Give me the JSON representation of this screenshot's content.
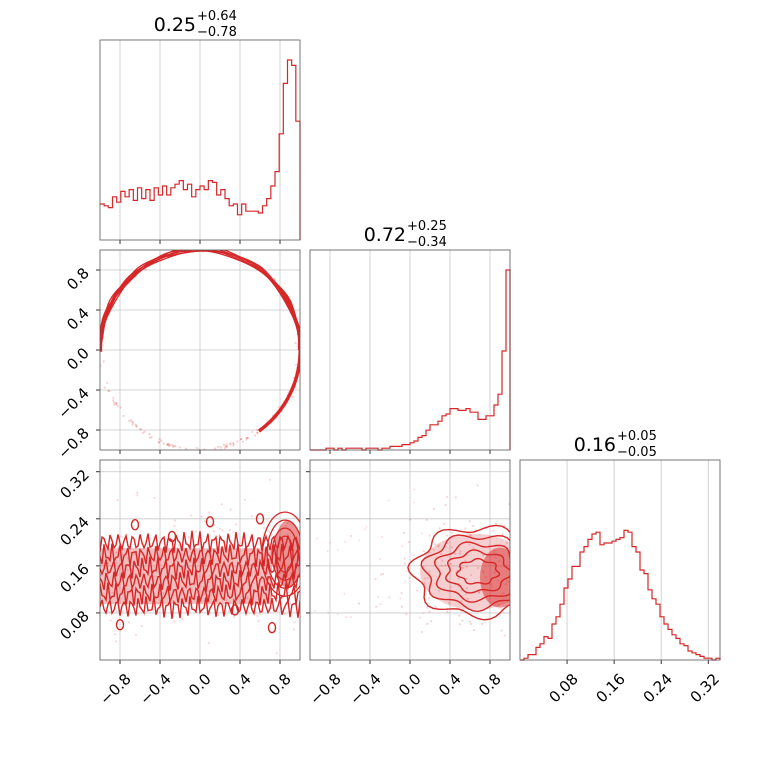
{
  "colors": {
    "accent": "#d62728",
    "grid": "#c8c8c8",
    "frame": "#555555"
  },
  "chart_data": {
    "type": "corner",
    "titles": [
      {
        "value": "0.25",
        "plus": "+0.64",
        "minus": "−0.78"
      },
      {
        "value": "0.72",
        "plus": "+0.25",
        "minus": "−0.34"
      },
      {
        "value": "0.16",
        "plus": "+0.05",
        "minus": "−0.05"
      }
    ],
    "param_ranges": [
      [
        -1.0,
        1.0
      ],
      [
        -1.0,
        1.0
      ],
      [
        0.0,
        0.34
      ]
    ],
    "ticks": [
      {
        "values": [
          -0.8,
          -0.4,
          0.0,
          0.4,
          0.8
        ],
        "labels": [
          "−0.8",
          "−0.4",
          "0.0",
          "0.4",
          "0.8"
        ]
      },
      {
        "values": [
          -0.8,
          -0.4,
          0.0,
          0.4,
          0.8
        ],
        "labels": [
          "−0.8",
          "−0.4",
          "0.0",
          "0.4",
          "0.8"
        ]
      },
      {
        "values": [
          0.08,
          0.16,
          0.24,
          0.32
        ],
        "labels": [
          "0.08",
          "0.16",
          "0.24",
          "0.32"
        ]
      }
    ],
    "grid": true,
    "hist1": [
      0.2,
      0.19,
      0.18,
      0.24,
      0.21,
      0.27,
      0.24,
      0.28,
      0.22,
      0.29,
      0.23,
      0.28,
      0.22,
      0.29,
      0.25,
      0.3,
      0.25,
      0.29,
      0.31,
      0.33,
      0.28,
      0.31,
      0.24,
      0.28,
      0.3,
      0.28,
      0.33,
      0.32,
      0.25,
      0.28,
      0.23,
      0.19,
      0.2,
      0.14,
      0.2,
      0.16,
      0.16,
      0.16,
      0.15,
      0.19,
      0.23,
      0.3,
      0.38,
      0.59,
      0.87,
      1.0,
      0.97,
      0.66
    ],
    "hist2": [
      0.0,
      0.0,
      0.0,
      0.0,
      0.01,
      0.01,
      0.0,
      0.01,
      0.0,
      0.01,
      0.01,
      0.01,
      0.01,
      0.0,
      0.01,
      0.01,
      0.01,
      0.0,
      0.01,
      0.01,
      0.02,
      0.02,
      0.02,
      0.03,
      0.03,
      0.04,
      0.05,
      0.07,
      0.08,
      0.11,
      0.14,
      0.14,
      0.16,
      0.19,
      0.2,
      0.23,
      0.23,
      0.22,
      0.22,
      0.23,
      0.21,
      0.21,
      0.17,
      0.17,
      0.19,
      0.19,
      0.25,
      0.31,
      0.55,
      1.0
    ],
    "hist3": [
      0.0,
      0.01,
      0.03,
      0.03,
      0.07,
      0.09,
      0.13,
      0.12,
      0.2,
      0.24,
      0.31,
      0.4,
      0.45,
      0.52,
      0.52,
      0.6,
      0.63,
      0.67,
      0.7,
      0.71,
      0.64,
      0.65,
      0.65,
      0.66,
      0.67,
      0.68,
      0.72,
      0.71,
      0.63,
      0.6,
      0.5,
      0.48,
      0.39,
      0.34,
      0.31,
      0.24,
      0.2,
      0.17,
      0.14,
      0.12,
      0.09,
      0.08,
      0.05,
      0.04,
      0.03,
      0.02,
      0.01,
      0.01,
      0.0,
      0.01
    ]
  }
}
